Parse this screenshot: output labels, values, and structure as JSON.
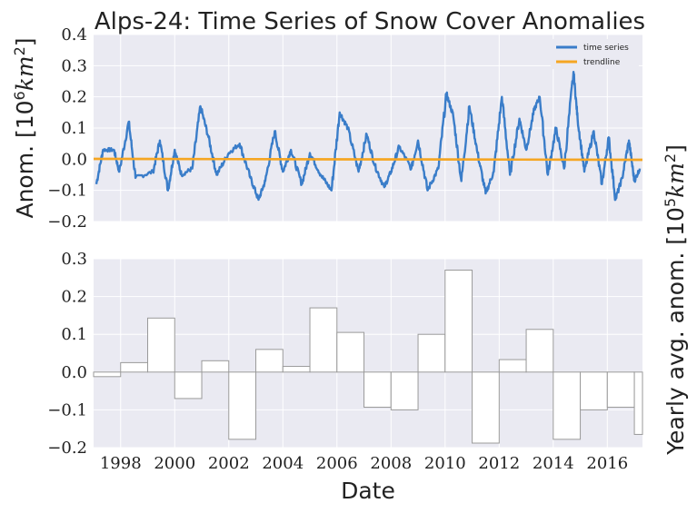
{
  "chart_data": [
    {
      "type": "line",
      "title": "Alps-24: Time Series of Snow Cover Anomalies",
      "ylabel": "Anom. [10^6 km^2]",
      "ylabel_prefix": "Anom. ",
      "ylabel_unit_power": "6",
      "ylim": [
        -0.2,
        0.4
      ],
      "xlim": [
        1997.0,
        2017.3
      ],
      "yticks": [
        "−0.2",
        "−0.1",
        "0.0",
        "0.1",
        "0.2",
        "0.3",
        "0.4"
      ],
      "ytick_values": [
        -0.2,
        -0.1,
        0.0,
        0.1,
        0.2,
        0.3,
        0.4
      ],
      "grid": true,
      "legend": {
        "placement": "top-right",
        "entries": [
          {
            "label": "time series",
            "color": "#3a7dc9"
          },
          {
            "label": "trendline",
            "color": "#f5a623"
          }
        ]
      },
      "series": [
        {
          "name": "time series",
          "color": "#3a7dc9",
          "peaks": [
            {
              "x": 1997.1,
              "y": -0.08
            },
            {
              "x": 1997.35,
              "y": 0.03
            },
            {
              "x": 1997.75,
              "y": 0.03
            },
            {
              "x": 1997.95,
              "y": -0.04
            },
            {
              "x": 1998.3,
              "y": 0.12
            },
            {
              "x": 1998.55,
              "y": -0.06
            },
            {
              "x": 1999.2,
              "y": -0.04
            },
            {
              "x": 1999.45,
              "y": 0.06
            },
            {
              "x": 1999.75,
              "y": -0.1
            },
            {
              "x": 2000.0,
              "y": 0.03
            },
            {
              "x": 2000.25,
              "y": -0.05
            },
            {
              "x": 2000.65,
              "y": -0.03
            },
            {
              "x": 2000.95,
              "y": 0.17
            },
            {
              "x": 2001.25,
              "y": 0.07
            },
            {
              "x": 2001.55,
              "y": -0.05
            },
            {
              "x": 2002.0,
              "y": 0.02
            },
            {
              "x": 2002.4,
              "y": 0.05
            },
            {
              "x": 2002.8,
              "y": -0.06
            },
            {
              "x": 2003.1,
              "y": -0.13
            },
            {
              "x": 2003.35,
              "y": -0.07
            },
            {
              "x": 2003.7,
              "y": 0.09
            },
            {
              "x": 2004.0,
              "y": -0.04
            },
            {
              "x": 2004.3,
              "y": 0.03
            },
            {
              "x": 2004.7,
              "y": -0.08
            },
            {
              "x": 2005.0,
              "y": 0.02
            },
            {
              "x": 2005.4,
              "y": -0.05
            },
            {
              "x": 2005.8,
              "y": -0.1
            },
            {
              "x": 2006.1,
              "y": 0.15
            },
            {
              "x": 2006.4,
              "y": 0.1
            },
            {
              "x": 2006.8,
              "y": -0.04
            },
            {
              "x": 2007.1,
              "y": 0.08
            },
            {
              "x": 2007.4,
              "y": -0.02
            },
            {
              "x": 2007.75,
              "y": -0.09
            },
            {
              "x": 2008.0,
              "y": -0.04
            },
            {
              "x": 2008.3,
              "y": 0.04
            },
            {
              "x": 2008.75,
              "y": -0.03
            },
            {
              "x": 2009.0,
              "y": 0.06
            },
            {
              "x": 2009.35,
              "y": -0.1
            },
            {
              "x": 2009.75,
              "y": -0.03
            },
            {
              "x": 2010.05,
              "y": 0.21
            },
            {
              "x": 2010.3,
              "y": 0.14
            },
            {
              "x": 2010.6,
              "y": -0.07
            },
            {
              "x": 2010.9,
              "y": 0.17
            },
            {
              "x": 2011.2,
              "y": 0.02
            },
            {
              "x": 2011.5,
              "y": -0.11
            },
            {
              "x": 2011.8,
              "y": -0.04
            },
            {
              "x": 2012.1,
              "y": 0.2
            },
            {
              "x": 2012.4,
              "y": -0.05
            },
            {
              "x": 2012.75,
              "y": 0.13
            },
            {
              "x": 2013.0,
              "y": 0.03
            },
            {
              "x": 2013.3,
              "y": 0.16
            },
            {
              "x": 2013.5,
              "y": 0.2
            },
            {
              "x": 2013.8,
              "y": -0.05
            },
            {
              "x": 2014.1,
              "y": 0.1
            },
            {
              "x": 2014.4,
              "y": -0.03
            },
            {
              "x": 2014.75,
              "y": 0.28
            },
            {
              "x": 2014.9,
              "y": 0.13
            },
            {
              "x": 2015.15,
              "y": -0.04
            },
            {
              "x": 2015.5,
              "y": 0.09
            },
            {
              "x": 2015.8,
              "y": -0.08
            },
            {
              "x": 2016.05,
              "y": 0.07
            },
            {
              "x": 2016.3,
              "y": -0.13
            },
            {
              "x": 2016.55,
              "y": -0.06
            },
            {
              "x": 2016.8,
              "y": 0.06
            },
            {
              "x": 2017.0,
              "y": -0.07
            },
            {
              "x": 2017.2,
              "y": -0.03
            }
          ]
        },
        {
          "name": "trendline",
          "color": "#f5a623",
          "x": [
            1997.0,
            2017.3
          ],
          "y": [
            0.001,
            -0.002
          ]
        }
      ]
    },
    {
      "type": "bar",
      "ylabel": "Yearly avg. anom. [10^5 km^2]",
      "ylabel_prefix": "Yearly avg. anom. ",
      "ylabel_unit_power": "5",
      "xlabel": "Date",
      "ylim": [
        -0.2,
        0.3
      ],
      "xlim": [
        1997.0,
        2017.3
      ],
      "yticks": [
        "−0.2",
        "−0.1",
        "0.0",
        "0.1",
        "0.2",
        "0.3"
      ],
      "ytick_values": [
        -0.2,
        -0.1,
        0.0,
        0.1,
        0.2,
        0.3
      ],
      "xticks": [
        "1998",
        "2000",
        "2002",
        "2004",
        "2006",
        "2008",
        "2010",
        "2012",
        "2014",
        "2016"
      ],
      "xtick_values": [
        1998,
        2000,
        2002,
        2004,
        2006,
        2008,
        2010,
        2012,
        2014,
        2016
      ],
      "grid": true,
      "categories": [
        "1997",
        "1998",
        "1999",
        "2000",
        "2001",
        "2002",
        "2003",
        "2004",
        "2005",
        "2006",
        "2007",
        "2008",
        "2009",
        "2010",
        "2011",
        "2012",
        "2013",
        "2014",
        "2015",
        "2016",
        "2017"
      ],
      "values": [
        -0.012,
        0.025,
        0.143,
        -0.07,
        0.03,
        -0.178,
        0.06,
        0.015,
        0.17,
        0.105,
        -0.093,
        -0.1,
        0.1,
        0.27,
        -0.188,
        0.033,
        0.113,
        -0.178,
        -0.1,
        -0.093,
        -0.165
      ]
    }
  ]
}
